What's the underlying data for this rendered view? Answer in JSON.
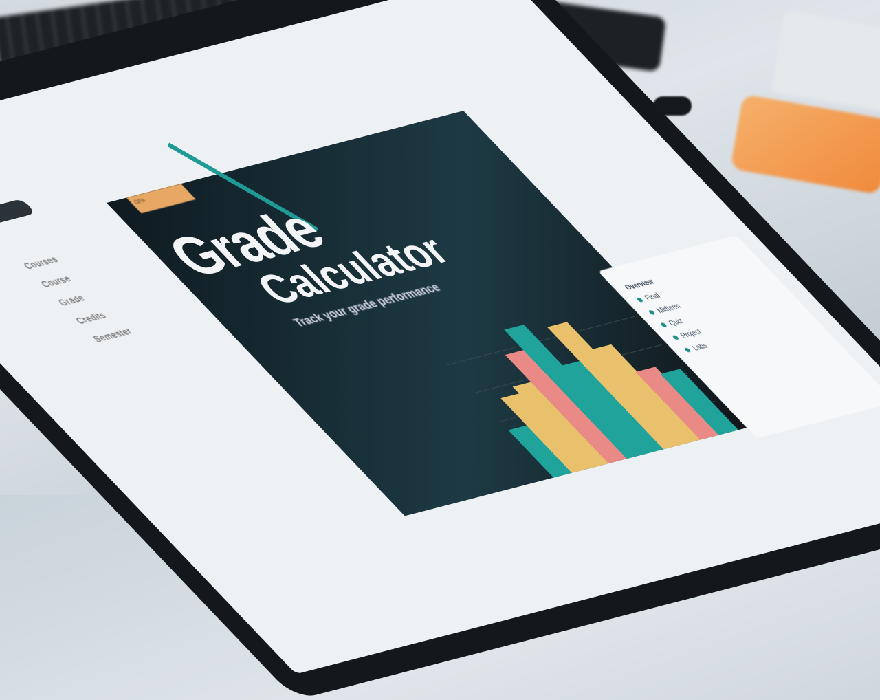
{
  "app": {
    "title_line1": "Grade",
    "title_line2": "Calculator",
    "subtitle": "Track your grade performance",
    "tag": "GPA"
  },
  "sidebar": {
    "items": [
      {
        "label": "Courses"
      },
      {
        "label": "Course"
      },
      {
        "label": "Grade"
      },
      {
        "label": "Credits"
      },
      {
        "label": "Semester"
      }
    ]
  },
  "card": {
    "heading": "Overview",
    "items": [
      "Final",
      "Midterm",
      "Quiz",
      "Project",
      "Labs"
    ]
  },
  "colors": {
    "accent": "#1f9a94",
    "bar_yellow": "#e9c16c",
    "bar_pink": "#e98a86",
    "bar_teal": "#1fa39b",
    "tag": "#e7a866"
  },
  "chart_data": {
    "type": "bar",
    "bars": [
      35,
      55,
      60,
      80,
      95,
      65,
      90,
      70,
      50,
      45
    ]
  }
}
